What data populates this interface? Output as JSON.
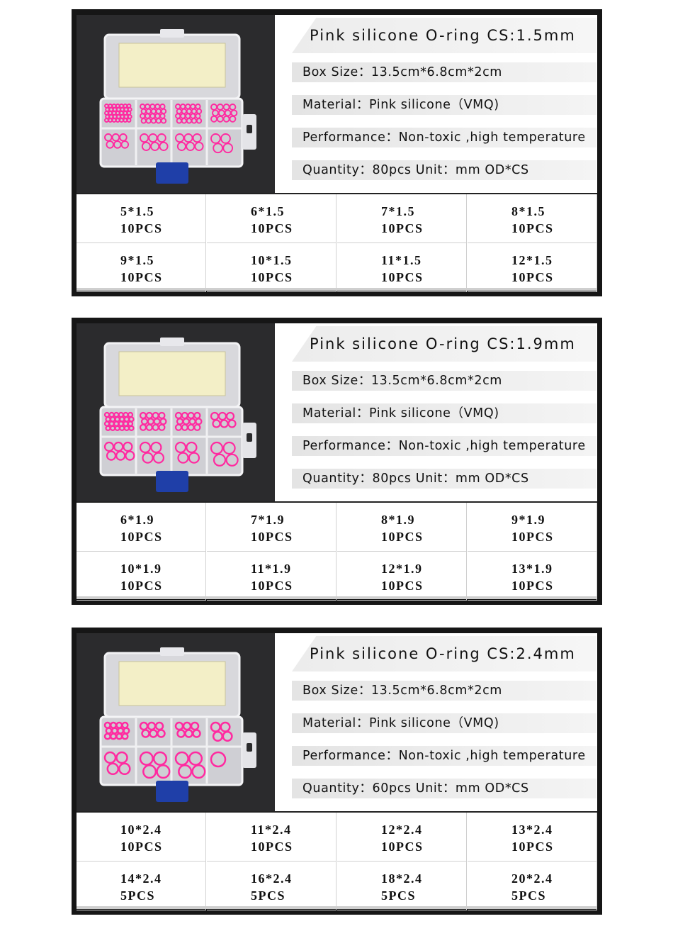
{
  "panels": [
    {
      "title": "Pink silicone O-ring  CS:1.5mm",
      "box_size": "Box Size：13.5cm*6.8cm*2cm",
      "material": "Material：Pink silicone（VMQ)",
      "performance": "Performance：Non-toxic ,high temperature",
      "quantity": "Quantity：80pcs    Unit：mm    OD*CS",
      "sizes": [
        {
          "size": "5*1.5",
          "qty": "10PCS"
        },
        {
          "size": "6*1.5",
          "qty": "10PCS"
        },
        {
          "size": "7*1.5",
          "qty": "10PCS"
        },
        {
          "size": "8*1.5",
          "qty": "10PCS"
        },
        {
          "size": "9*1.5",
          "qty": "10PCS"
        },
        {
          "size": "10*1.5",
          "qty": "10PCS"
        },
        {
          "size": "11*1.5",
          "qty": "10PCS"
        },
        {
          "size": "12*1.5",
          "qty": "10PCS"
        }
      ]
    },
    {
      "title": "Pink silicone O-ring  CS:1.9mm",
      "box_size": "Box Size：13.5cm*6.8cm*2cm",
      "material": "Material：Pink silicone（VMQ)",
      "performance": "Performance：Non-toxic ,high temperature",
      "quantity": "Quantity：80pcs    Unit：mm    OD*CS",
      "sizes": [
        {
          "size": "6*1.9",
          "qty": "10PCS"
        },
        {
          "size": "7*1.9",
          "qty": "10PCS"
        },
        {
          "size": "8*1.9",
          "qty": "10PCS"
        },
        {
          "size": "9*1.9",
          "qty": "10PCS"
        },
        {
          "size": "10*1.9",
          "qty": "10PCS"
        },
        {
          "size": "11*1.9",
          "qty": "10PCS"
        },
        {
          "size": "12*1.9",
          "qty": "10PCS"
        },
        {
          "size": "13*1.9",
          "qty": "10PCS"
        }
      ]
    },
    {
      "title": "Pink silicone O-ring  CS:2.4mm",
      "box_size": "Box Size：13.5cm*6.8cm*2cm",
      "material": "Material：Pink silicone（VMQ)",
      "performance": "Performance：Non-toxic ,high temperature",
      "quantity": "Quantity：60pcs    Unit：mm    OD*CS",
      "sizes": [
        {
          "size": "10*2.4",
          "qty": "10PCS"
        },
        {
          "size": "11*2.4",
          "qty": "10PCS"
        },
        {
          "size": "12*2.4",
          "qty": "10PCS"
        },
        {
          "size": "13*2.4",
          "qty": "10PCS"
        },
        {
          "size": "14*2.4",
          "qty": "5PCS"
        },
        {
          "size": "16*2.4",
          "qty": "5PCS"
        },
        {
          "size": "18*2.4",
          "qty": "5PCS"
        },
        {
          "size": "20*2.4",
          "qty": "5PCS"
        }
      ]
    }
  ],
  "colors": {
    "ring": "#ff2aa0",
    "handle": "#1f3fa8",
    "label_paper": "#f3efc7"
  }
}
